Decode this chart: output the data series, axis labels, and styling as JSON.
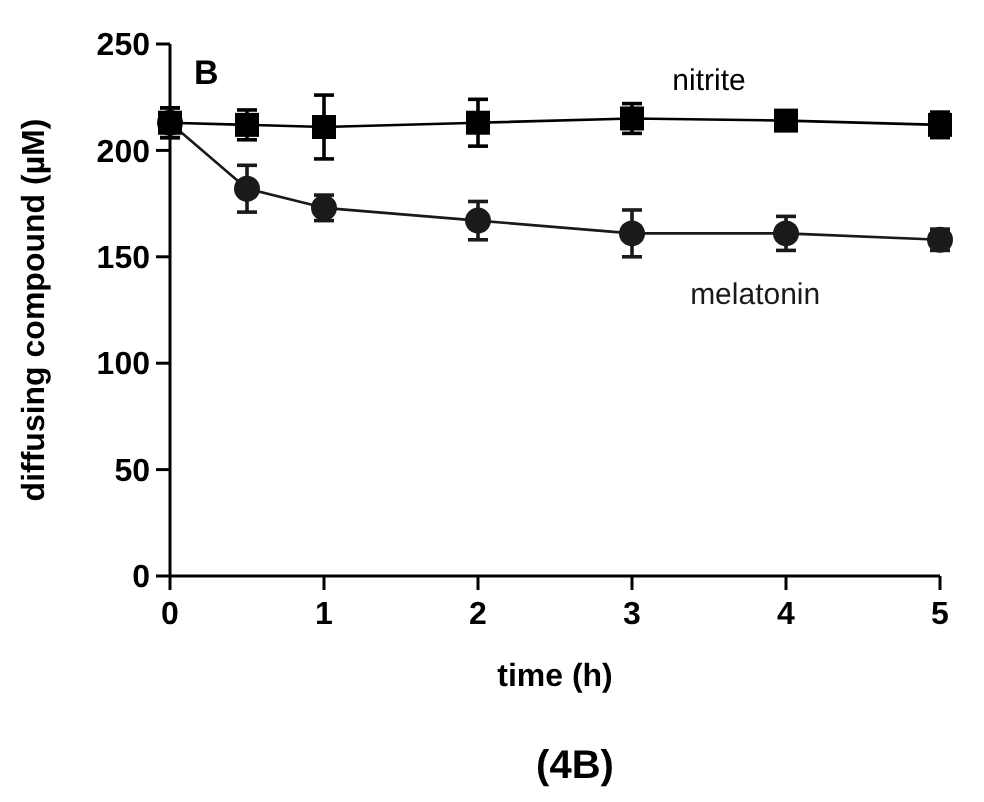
{
  "chart_data": {
    "type": "line",
    "xlabel": "time (h)",
    "ylabel": "diffusing compound (µM)",
    "x": [
      0,
      0.5,
      1,
      2,
      3,
      4,
      5
    ],
    "xlim": [
      0,
      5
    ],
    "xticks": [
      0,
      1,
      2,
      3,
      4,
      5
    ],
    "ylim": [
      0,
      250
    ],
    "yticks": [
      0,
      50,
      100,
      150,
      200,
      250
    ],
    "series": [
      {
        "name": "nitrite",
        "color": "#000000",
        "marker": "square",
        "values": [
          213,
          212,
          211,
          213,
          215,
          214,
          212
        ],
        "errors": [
          7,
          7,
          15,
          11,
          7,
          2,
          6
        ]
      },
      {
        "name": "melatonin",
        "color": "#1a1a1a",
        "marker": "circle",
        "values": [
          213,
          182,
          173,
          167,
          161,
          161,
          158
        ],
        "errors": [
          7,
          11,
          6,
          9,
          11,
          8,
          5
        ]
      }
    ],
    "annotations": [
      "B",
      "(4B)"
    ]
  }
}
